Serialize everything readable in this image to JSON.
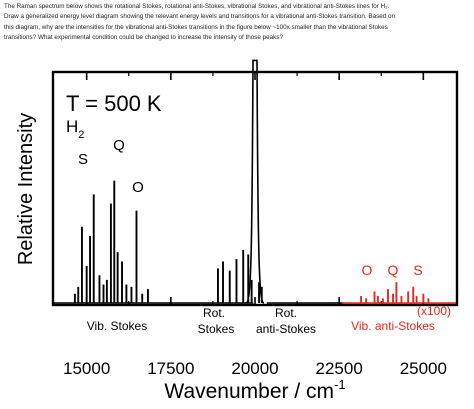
{
  "question": {
    "line1": "The Raman spectrum below shows the rotational Stokes, rotational anti-Stokes, vibrational Stokes, and vibrational anti-Stokes lines for H₂.",
    "line2": "Draw a generalized energy level diagram showing the relevant energy levels and transitions for a vibrational anti-Stokes transition. Based on",
    "line3": "this diagram, why are the intensities for the vibrational anti-Stokes transitions in the figure below ~100x smaller than the vibrational Stokes",
    "line4": "transitions? What experimental condition could be changed to increase the intensity of those peaks?"
  },
  "colors": {
    "stokes": "#000000",
    "anti_stokes": "#e8261b"
  },
  "chart_data": {
    "type": "line",
    "title": "T = 500 K",
    "molecule": "H₂",
    "molecule_main": "H",
    "molecule_sub": "2",
    "xlabel": "Wavenumber / cm",
    "xlabel_sup": "-1",
    "ylabel": "Relative Intensity",
    "xlim": [
      14000,
      26000
    ],
    "ylim": [
      0,
      1
    ],
    "xticks": [
      15000,
      17500,
      20000,
      22500,
      25000
    ],
    "xtick_labels": [
      "15000",
      "17500",
      "20000",
      "22500",
      "25000"
    ],
    "grid": false,
    "laser_line": {
      "center": 20000,
      "baseline": 0.02,
      "peak_height": 1.05
    },
    "series": [
      {
        "name": "Vib. Stokes",
        "color": "#000000",
        "lines": [
          {
            "x": 14650,
            "y": 0.04
          },
          {
            "x": 14750,
            "y": 0.07
          },
          {
            "x": 14860,
            "y": 0.33
          },
          {
            "x": 15000,
            "y": 0.16
          },
          {
            "x": 15100,
            "y": 0.29
          },
          {
            "x": 15210,
            "y": 0.47
          },
          {
            "x": 15380,
            "y": 0.12
          },
          {
            "x": 15500,
            "y": 0.08
          },
          {
            "x": 15600,
            "y": 0.1
          },
          {
            "x": 15720,
            "y": 0.43
          },
          {
            "x": 15820,
            "y": 0.53
          },
          {
            "x": 15920,
            "y": 0.22
          },
          {
            "x": 16050,
            "y": 0.18
          },
          {
            "x": 16180,
            "y": 0.08
          },
          {
            "x": 16330,
            "y": 0.07
          },
          {
            "x": 16480,
            "y": 0.4
          },
          {
            "x": 16650,
            "y": 0.04
          },
          {
            "x": 16820,
            "y": 0.06
          }
        ]
      },
      {
        "name": "Rot. Stokes",
        "color": "#000000",
        "lines": [
          {
            "x": 18900,
            "y": 0.15
          },
          {
            "x": 19050,
            "y": 0.18
          },
          {
            "x": 19250,
            "y": 0.14
          },
          {
            "x": 19450,
            "y": 0.19
          },
          {
            "x": 19650,
            "y": 0.23
          },
          {
            "x": 19800,
            "y": 0.21
          },
          {
            "x": 19900,
            "y": 0.1
          }
        ]
      },
      {
        "name": "Rot. anti-Stokes",
        "color": "#000000",
        "lines": [
          {
            "x": 20120,
            "y": 0.09
          },
          {
            "x": 20200,
            "y": 0.07
          }
        ]
      },
      {
        "name": "Vib. anti-Stokes",
        "color": "#e8261b",
        "scale_note": "(x100)",
        "lines": [
          {
            "x": 23150,
            "y": 0.03
          },
          {
            "x": 23300,
            "y": 0.02
          },
          {
            "x": 23550,
            "y": 0.05
          },
          {
            "x": 23650,
            "y": 0.03
          },
          {
            "x": 23800,
            "y": 0.02
          },
          {
            "x": 23950,
            "y": 0.06
          },
          {
            "x": 24100,
            "y": 0.04
          },
          {
            "x": 24200,
            "y": 0.09
          },
          {
            "x": 24350,
            "y": 0.03
          },
          {
            "x": 24550,
            "y": 0.05
          },
          {
            "x": 24700,
            "y": 0.07
          },
          {
            "x": 24800,
            "y": 0.03
          },
          {
            "x": 25000,
            "y": 0.04
          },
          {
            "x": 25150,
            "y": 0.02
          }
        ]
      }
    ],
    "annotations": {
      "branch_s": "S",
      "branch_q": "Q",
      "branch_o": "O",
      "anti_o": "O",
      "anti_q": "Q",
      "anti_s": "S",
      "rot_stokes_1": "Rot.",
      "rot_stokes_2": "Stokes",
      "rot_anti_1": "Rot.",
      "rot_anti_2": "anti-Stokes",
      "vib_stokes": "Vib. Stokes",
      "vib_anti": "Vib. anti-Stokes",
      "scale": "(x100)"
    }
  }
}
